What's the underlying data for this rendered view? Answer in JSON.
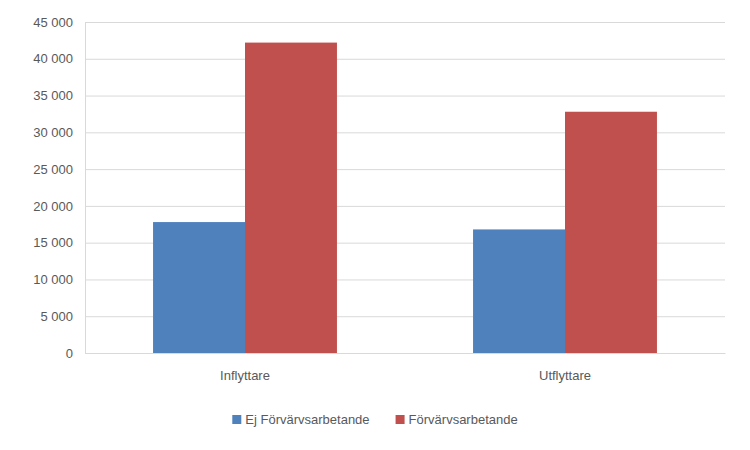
{
  "chart_data": {
    "type": "bar",
    "categories": [
      "Inflyttare",
      "Utflyttare"
    ],
    "series": [
      {
        "name": "Ej Förvärvsarbetande",
        "color": "#4f81bd",
        "values": [
          17800,
          16800
        ]
      },
      {
        "name": "Förvärvsarbetande",
        "color": "#c0504d",
        "values": [
          42200,
          32800
        ]
      }
    ],
    "ylim": [
      0,
      45000
    ],
    "yticks": [
      0,
      {
        "value": 5000,
        "label": "5 000"
      },
      {
        "value": 10000,
        "label": "10 000"
      },
      {
        "value": 15000,
        "label": "15 000"
      },
      {
        "value": 20000,
        "label": "20 000"
      },
      {
        "value": 25000,
        "label": "25 000"
      },
      {
        "value": 30000,
        "label": "30 000"
      },
      {
        "value": 35000,
        "label": "35 000"
      },
      {
        "value": 40000,
        "label": "40 000"
      },
      {
        "value": 45000,
        "label": "45 000"
      }
    ],
    "grid": true,
    "legend": "bottom"
  }
}
